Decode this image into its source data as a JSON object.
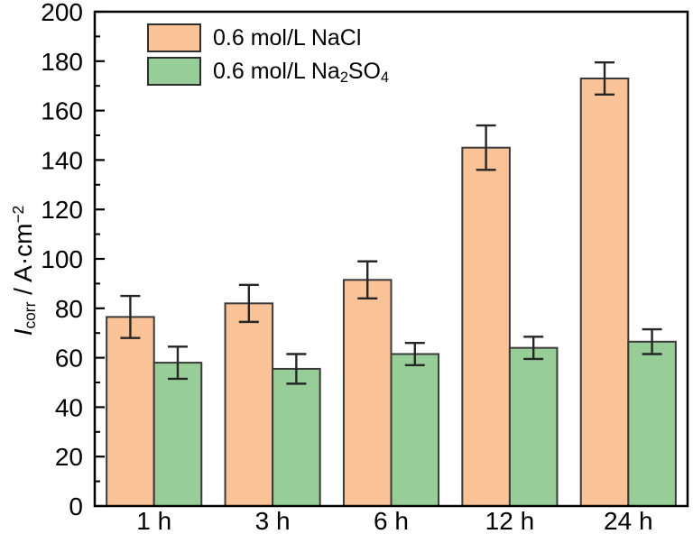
{
  "chart_data": {
    "type": "bar",
    "title": "",
    "categories": [
      "1 h",
      "3 h",
      "6 h",
      "12 h",
      "24 h"
    ],
    "series": [
      {
        "name": "0.6 mol/L NaCl",
        "color": "#FAC397",
        "values": [
          76.5,
          82,
          91.5,
          145,
          173
        ],
        "errors": [
          8.5,
          7.5,
          7.5,
          9,
          6.5
        ]
      },
      {
        "name": "0.6 mol/L Na2SO4",
        "color": "#97CE97",
        "values": [
          58,
          55.5,
          61.5,
          64,
          66.5
        ],
        "errors": [
          6.5,
          6,
          4.5,
          4.5,
          5
        ]
      }
    ],
    "xlabel": "",
    "ylabel": "I_corr / A·cm^−2",
    "ylim": [
      0,
      200
    ],
    "ytick_step": 20,
    "yminor_step": 10,
    "grid": false,
    "legend_position": "top-left-inside"
  },
  "axes": {
    "y_ticks": [
      "0",
      "20",
      "40",
      "60",
      "80",
      "100",
      "120",
      "140",
      "160",
      "180",
      "200"
    ],
    "x_ticks": [
      "1 h",
      "3 h",
      "6 h",
      "12 h",
      "24 h"
    ],
    "ylabel_parts": {
      "symbol": "I",
      "subscript": "corr",
      "unit_prefix": " / A·cm",
      "exponent": "−2"
    }
  },
  "legend": {
    "items": [
      {
        "label": "0.6 mol/L NaCl"
      },
      {
        "label": "0.6 mol/L Na2SO4",
        "parts": {
          "prefix": "0.6 mol/L Na",
          "sub1": "2",
          "mid": "SO",
          "sub2": "4"
        }
      }
    ]
  },
  "colors": {
    "nacl_bar": "#FAC397",
    "na2so4_bar": "#97CE97",
    "bar_edge": "#3a3a3a",
    "error_bar": "#262626",
    "axis": "#000000",
    "background": "#ffffff"
  }
}
